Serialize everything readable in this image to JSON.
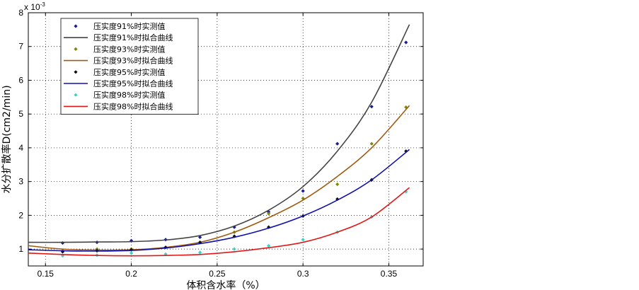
{
  "chart_data": {
    "type": "scatter",
    "xlabel": "体积含水率（%）",
    "ylabel": "水分扩散率D(cm2/min)",
    "y_exponent": "x 10",
    "y_exponent_power": "-3",
    "xlim": [
      0.14,
      0.37
    ],
    "ylim": [
      0.5,
      8
    ],
    "xticks": [
      0.15,
      0.2,
      0.25,
      0.3,
      0.35
    ],
    "xtick_labels": [
      "0.15",
      "0.2",
      "0.25",
      "0.3",
      "0.35"
    ],
    "yticks": [
      1,
      2,
      3,
      4,
      5,
      6,
      7,
      8
    ],
    "ytick_labels": [
      "1",
      "2",
      "3",
      "4",
      "5",
      "6",
      "7",
      "8"
    ],
    "grid": true,
    "legend_position": "top-left",
    "series": [
      {
        "name": "压实度91%时实测值",
        "kind": "points",
        "color": "#1a1a9a",
        "x": [
          0.16,
          0.18,
          0.2,
          0.22,
          0.24,
          0.26,
          0.28,
          0.3,
          0.32,
          0.34,
          0.36
        ],
        "y": [
          1.18,
          1.2,
          1.25,
          1.28,
          1.35,
          1.65,
          2.1,
          2.72,
          4.12,
          5.22,
          7.12
        ]
      },
      {
        "name": "压实度91%时拟合曲线",
        "kind": "line",
        "color": "#444444",
        "x": [
          0.14,
          0.16,
          0.18,
          0.2,
          0.22,
          0.24,
          0.26,
          0.28,
          0.3,
          0.32,
          0.34,
          0.362
        ],
        "y": [
          1.2,
          1.2,
          1.21,
          1.22,
          1.27,
          1.4,
          1.68,
          2.15,
          2.85,
          3.9,
          5.35,
          7.65
        ]
      },
      {
        "name": "压实度93%时实测值",
        "kind": "points",
        "color": "#7a8a10",
        "x": [
          0.16,
          0.18,
          0.2,
          0.22,
          0.24,
          0.26,
          0.28,
          0.3,
          0.32,
          0.34,
          0.36
        ],
        "y": [
          0.95,
          1.0,
          1.0,
          1.05,
          1.2,
          1.5,
          2.05,
          2.5,
          2.92,
          4.12,
          5.2
        ]
      },
      {
        "name": "压实度93%时拟合曲线",
        "kind": "line",
        "color": "#a05a10",
        "x": [
          0.14,
          0.16,
          0.18,
          0.2,
          0.22,
          0.24,
          0.26,
          0.28,
          0.3,
          0.32,
          0.34,
          0.362
        ],
        "y": [
          1.1,
          1.0,
          0.97,
          0.98,
          1.05,
          1.2,
          1.5,
          1.93,
          2.45,
          3.15,
          4.0,
          5.25
        ]
      },
      {
        "name": "压实度95%时实测值",
        "kind": "points",
        "color": "#101010",
        "x": [
          0.16,
          0.18,
          0.2,
          0.22,
          0.24,
          0.26,
          0.28,
          0.3,
          0.32,
          0.34,
          0.36
        ],
        "y": [
          0.92,
          0.95,
          0.98,
          1.05,
          1.2,
          1.38,
          1.65,
          1.98,
          2.48,
          3.05,
          3.9
        ]
      },
      {
        "name": "压实度95%时拟合曲线",
        "kind": "line",
        "color": "#1010b0",
        "x": [
          0.14,
          0.16,
          0.18,
          0.2,
          0.22,
          0.24,
          0.26,
          0.28,
          0.3,
          0.32,
          0.34,
          0.362
        ],
        "y": [
          0.98,
          0.95,
          0.94,
          0.96,
          1.03,
          1.16,
          1.35,
          1.62,
          1.98,
          2.45,
          3.05,
          3.95
        ]
      },
      {
        "name": "压实度98%时实测值",
        "kind": "points",
        "color": "#40d0c8",
        "x": [
          0.16,
          0.18,
          0.2,
          0.22,
          0.24,
          0.26,
          0.28,
          0.3,
          0.32,
          0.34,
          0.36
        ],
        "y": [
          0.8,
          0.82,
          0.88,
          0.85,
          0.9,
          1.0,
          1.1,
          1.28,
          1.5,
          1.95,
          2.7
        ]
      },
      {
        "name": "压实度98%时拟合曲线",
        "kind": "line",
        "color": "#e01818",
        "x": [
          0.14,
          0.16,
          0.18,
          0.2,
          0.22,
          0.24,
          0.26,
          0.28,
          0.3,
          0.32,
          0.34,
          0.362
        ],
        "y": [
          0.88,
          0.84,
          0.81,
          0.8,
          0.81,
          0.84,
          0.92,
          1.04,
          1.2,
          1.5,
          1.95,
          2.82
        ]
      }
    ]
  }
}
